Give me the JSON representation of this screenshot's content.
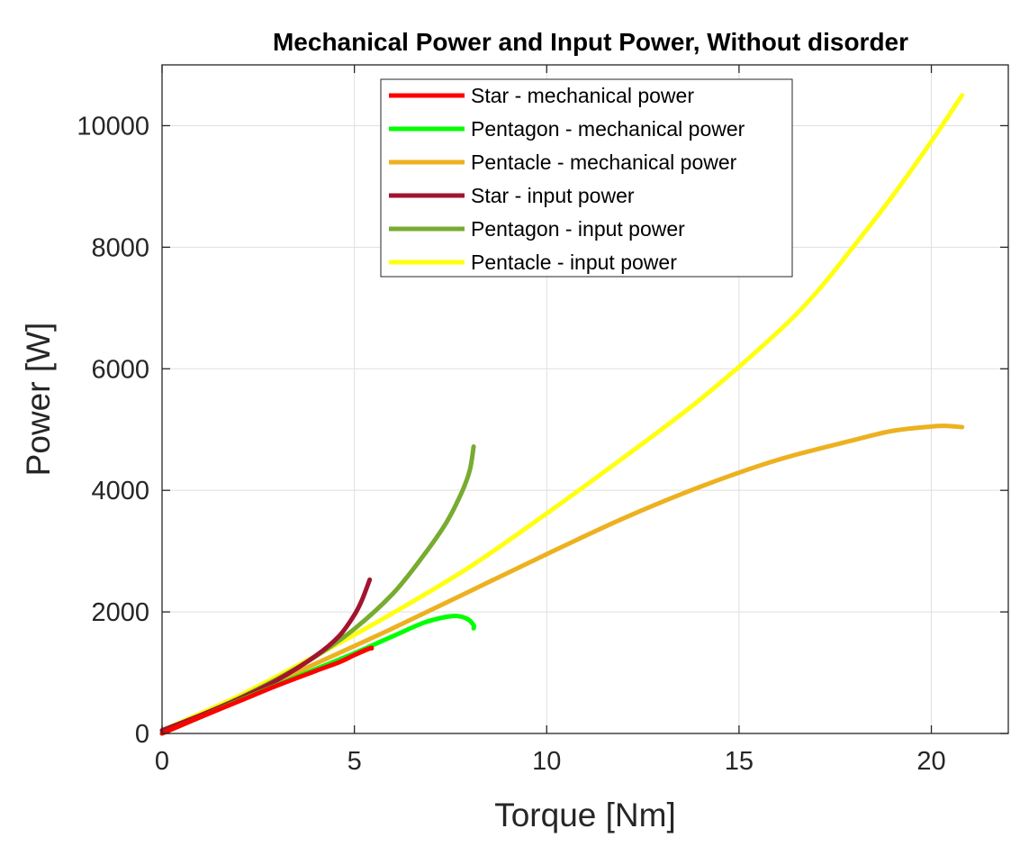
{
  "chart_data": {
    "type": "line",
    "title": "Mechanical Power and Input Power, Without disorder",
    "xlabel": "Torque [Nm]",
    "ylabel": "Power [W]",
    "xlim": [
      0,
      22
    ],
    "ylim": [
      0,
      11000
    ],
    "xticks": [
      0,
      5,
      10,
      15,
      20
    ],
    "yticks": [
      0,
      2000,
      4000,
      6000,
      8000,
      10000
    ],
    "xtick_labels": [
      "0",
      "5",
      "10",
      "15",
      "20"
    ],
    "ytick_labels": [
      "0",
      "2000",
      "4000",
      "6000",
      "8000",
      "10000"
    ],
    "grid": true,
    "legend_position": "top-center",
    "series": [
      {
        "name": "Star - mechanical power",
        "color": "#ff0000",
        "points": [
          [
            0,
            0
          ],
          [
            1,
            270
          ],
          [
            2,
            530
          ],
          [
            3,
            790
          ],
          [
            4,
            1030
          ],
          [
            4.6,
            1170
          ],
          [
            5.0,
            1290
          ],
          [
            5.4,
            1400
          ],
          [
            5.45,
            1400
          ]
        ]
      },
      {
        "name": "Pentagon - mechanical power",
        "color": "#00ff00",
        "points": [
          [
            0,
            0
          ],
          [
            1,
            270
          ],
          [
            2,
            540
          ],
          [
            3,
            800
          ],
          [
            4,
            1060
          ],
          [
            5,
            1320
          ],
          [
            6,
            1600
          ],
          [
            6.8,
            1820
          ],
          [
            7.4,
            1920
          ],
          [
            7.7,
            1930
          ],
          [
            7.95,
            1880
          ],
          [
            8.1,
            1780
          ],
          [
            8.1,
            1730
          ]
        ]
      },
      {
        "name": "Pentacle - mechanical power",
        "color": "#edb120",
        "points": [
          [
            0,
            0
          ],
          [
            2,
            570
          ],
          [
            4,
            1150
          ],
          [
            6,
            1730
          ],
          [
            8,
            2340
          ],
          [
            10,
            2950
          ],
          [
            12,
            3540
          ],
          [
            14,
            4060
          ],
          [
            16,
            4500
          ],
          [
            18,
            4830
          ],
          [
            19,
            4980
          ],
          [
            20,
            5050
          ],
          [
            20.4,
            5060
          ],
          [
            20.8,
            5040
          ]
        ]
      },
      {
        "name": "Star - input power",
        "color": "#a2142f",
        "points": [
          [
            0,
            50
          ],
          [
            1,
            300
          ],
          [
            2,
            570
          ],
          [
            3,
            880
          ],
          [
            4,
            1280
          ],
          [
            4.6,
            1600
          ],
          [
            5.0,
            1950
          ],
          [
            5.2,
            2200
          ],
          [
            5.4,
            2530
          ]
        ]
      },
      {
        "name": "Pentagon - input power",
        "color": "#77ac30",
        "points": [
          [
            0,
            50
          ],
          [
            1,
            300
          ],
          [
            2,
            580
          ],
          [
            3,
            900
          ],
          [
            4,
            1270
          ],
          [
            5,
            1720
          ],
          [
            6,
            2300
          ],
          [
            6.8,
            2930
          ],
          [
            7.4,
            3480
          ],
          [
            7.8,
            3980
          ],
          [
            8.0,
            4330
          ],
          [
            8.1,
            4720
          ]
        ]
      },
      {
        "name": "Pentacle - input power",
        "color": "#ffff11",
        "points": [
          [
            0,
            50
          ],
          [
            2,
            620
          ],
          [
            4,
            1280
          ],
          [
            6,
            1980
          ],
          [
            8,
            2740
          ],
          [
            10,
            3620
          ],
          [
            12,
            4540
          ],
          [
            14,
            5500
          ],
          [
            16,
            6600
          ],
          [
            17,
            7250
          ],
          [
            18,
            8030
          ],
          [
            19,
            8850
          ],
          [
            20,
            9740
          ],
          [
            20.8,
            10500
          ]
        ]
      }
    ]
  }
}
